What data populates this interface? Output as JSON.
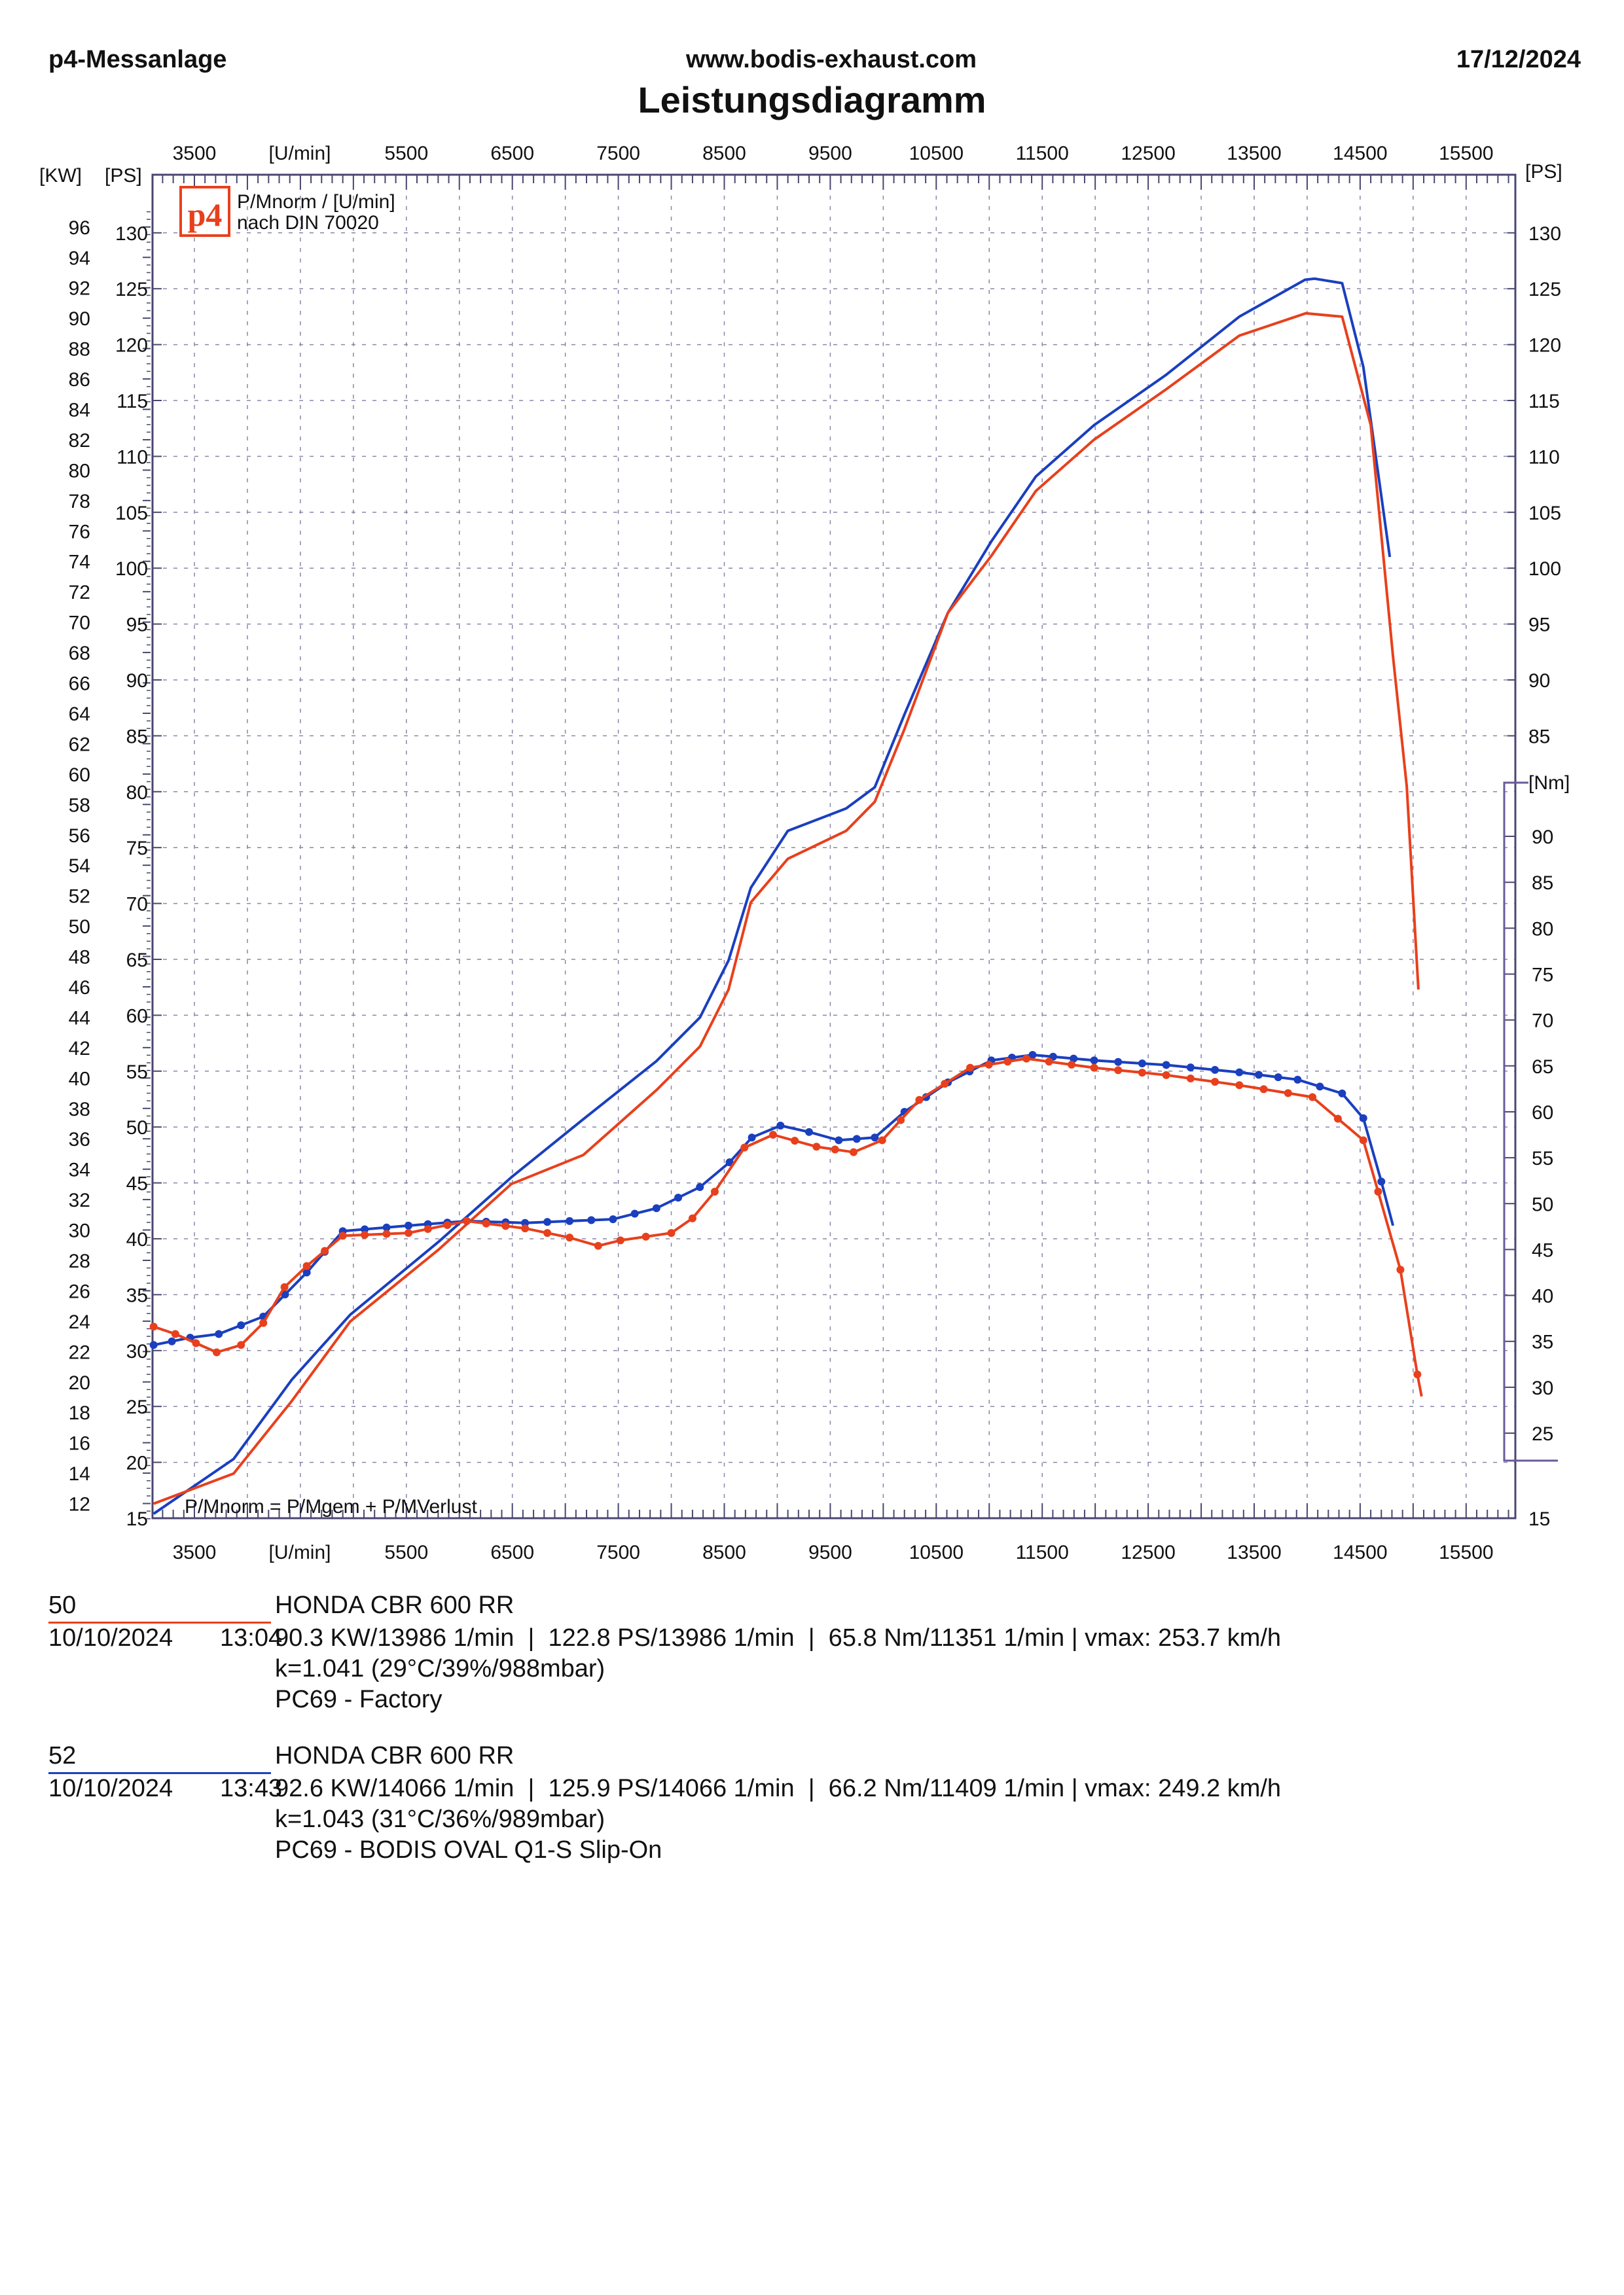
{
  "header": {
    "left": "p4-Messanlage",
    "center": "www.bodis-exhaust.com",
    "date": "17/12/2024",
    "title": "Leistungsdiagramm"
  },
  "legend": {
    "logo": "p4",
    "line1": "P/Mnorm / [U/min]",
    "line2": "nach DIN 70020",
    "formula": "P/Mnorm = P/Mgem + P/MVerlust"
  },
  "colors": {
    "run50": "#e8401c",
    "run52": "#1a3fbf",
    "grid": "#8a86a8",
    "axis": "#4a4670"
  },
  "chart_data": {
    "type": "line",
    "title": "Leistungsdiagramm",
    "xlabel": "[U/min]",
    "x_ticks": [
      3500,
      5500,
      6500,
      7500,
      8500,
      9500,
      10500,
      11500,
      12500,
      13500,
      14500,
      15500
    ],
    "xlim": [
      3100,
      16000
    ],
    "y_left_kw_label": "[KW]",
    "y_left_ps_label": "[PS]",
    "y_right_ps_label": "[PS]",
    "y_right_nm_label": "[Nm]",
    "kw_ticks": [
      12,
      14,
      16,
      18,
      20,
      22,
      24,
      26,
      28,
      30,
      32,
      34,
      36,
      38,
      40,
      42,
      44,
      46,
      48,
      50,
      52,
      54,
      56,
      58,
      60,
      62,
      64,
      66,
      68,
      70,
      72,
      74,
      76,
      78,
      80,
      82,
      84,
      86,
      88,
      90,
      92,
      94,
      96
    ],
    "ps_ticks": [
      15,
      20,
      25,
      30,
      35,
      40,
      45,
      50,
      55,
      60,
      65,
      70,
      75,
      80,
      85,
      90,
      95,
      100,
      105,
      110,
      115,
      120,
      125,
      130
    ],
    "ps_right_ticks": [
      15,
      85,
      90,
      95,
      100,
      105,
      110,
      115,
      120,
      125,
      130
    ],
    "nm_ticks": [
      25,
      30,
      35,
      40,
      45,
      50,
      55,
      60,
      65,
      70,
      75,
      80,
      85,
      90
    ],
    "ylim_ps": [
      15,
      133
    ],
    "ylim_nm": [
      22,
      96
    ],
    "series": [
      {
        "name": "52 power PS",
        "run": "52",
        "unit": "PS",
        "x": [
          3115,
          3870,
          4420,
          4970,
          5800,
          6490,
          7170,
          7860,
          8270,
          8540,
          8750,
          9100,
          9650,
          9920,
          10200,
          10610,
          11020,
          11440,
          11990,
          12670,
          13360,
          13980,
          14070,
          14330,
          14530,
          14780
        ],
        "y": [
          15.4,
          20.3,
          27.4,
          33.2,
          39.7,
          45.5,
          50.7,
          55.9,
          59.8,
          64.9,
          71.4,
          76.5,
          78.5,
          80.4,
          86.9,
          96,
          102.4,
          108.2,
          112.8,
          117.3,
          122.5,
          125.8,
          125.9,
          125.5,
          118,
          101
        ]
      },
      {
        "name": "50 power PS",
        "run": "50",
        "unit": "PS",
        "x": [
          3115,
          3870,
          4420,
          4970,
          5800,
          6490,
          7170,
          7860,
          8270,
          8540,
          8750,
          9100,
          9650,
          9920,
          10200,
          10610,
          11020,
          11440,
          11990,
          12670,
          13360,
          13986,
          14330,
          14600,
          14810,
          14940,
          15050
        ],
        "y": [
          16.3,
          19,
          25.5,
          32.6,
          39,
          44.9,
          47.5,
          53.3,
          57.2,
          62.3,
          70.1,
          74,
          76.5,
          79.1,
          85.6,
          96,
          101.1,
          106.9,
          111.5,
          116,
          120.8,
          122.8,
          122.5,
          112.8,
          92.1,
          80.5,
          62.3
        ]
      },
      {
        "name": "52 torque Nm",
        "run": "52",
        "unit": "Nm",
        "x": [
          3115,
          3460,
          3730,
          4150,
          4560,
          4900,
          5520,
          6070,
          6620,
          7040,
          7450,
          7860,
          8270,
          8550,
          8760,
          9030,
          9300,
          9580,
          9920,
          10200,
          10610,
          11020,
          11409,
          11990,
          12670,
          13360,
          13910,
          14330,
          14530,
          14700,
          14810
        ],
        "y": [
          34.6,
          35.4,
          35.8,
          37.7,
          42.5,
          47,
          47.6,
          48.1,
          47.9,
          48.1,
          48.3,
          49.5,
          51.8,
          54.5,
          57.2,
          58.5,
          57.8,
          56.9,
          57.2,
          60,
          63.2,
          65.6,
          66.2,
          65.6,
          65.1,
          64.3,
          63.5,
          62,
          59.3,
          52.4,
          47.6
        ]
      },
      {
        "name": "50 torque Nm",
        "run": "50",
        "unit": "Nm",
        "x": [
          3115,
          3320,
          3710,
          3940,
          4150,
          4350,
          4560,
          4900,
          5520,
          6070,
          6620,
          7040,
          7310,
          7520,
          8000,
          8200,
          8410,
          8690,
          8960,
          9370,
          9720,
          9990,
          10340,
          10820,
          11351,
          11990,
          12670,
          13360,
          14050,
          14530,
          14670,
          14880,
          15040,
          15080
        ],
        "y": [
          36.6,
          35.8,
          33.8,
          34.6,
          37,
          40.9,
          43.2,
          46.5,
          46.8,
          48.1,
          47.3,
          46.3,
          45.4,
          46,
          46.8,
          48.4,
          51.3,
          56.1,
          57.5,
          56.2,
          55.6,
          56.9,
          61.3,
          64.8,
          65.8,
          64.8,
          64,
          62.9,
          61.6,
          56.9,
          51.3,
          42.8,
          31.4,
          29
        ]
      }
    ]
  },
  "runs": [
    {
      "id": "50",
      "model": "HONDA CBR 600 RR",
      "date": "10/10/2024",
      "time": "13:04",
      "summary": "90.3 KW/13986 1/min  |  122.8 PS/13986 1/min  |  65.8 Nm/11351 1/min | vmax: 253.7 km/h",
      "k": "k=1.041 (29°C/39%/988mbar)",
      "config": "PC69 - Factory"
    },
    {
      "id": "52",
      "model": "HONDA CBR 600 RR",
      "date": "10/10/2024",
      "time": "13:43",
      "summary": "92.6 KW/14066 1/min  |  125.9 PS/14066 1/min  |  66.2 Nm/11409 1/min | vmax: 249.2 km/h",
      "k": "k=1.043 (31°C/36%/989mbar)",
      "config": "PC69 - BODIS OVAL Q1-S Slip-On"
    }
  ]
}
